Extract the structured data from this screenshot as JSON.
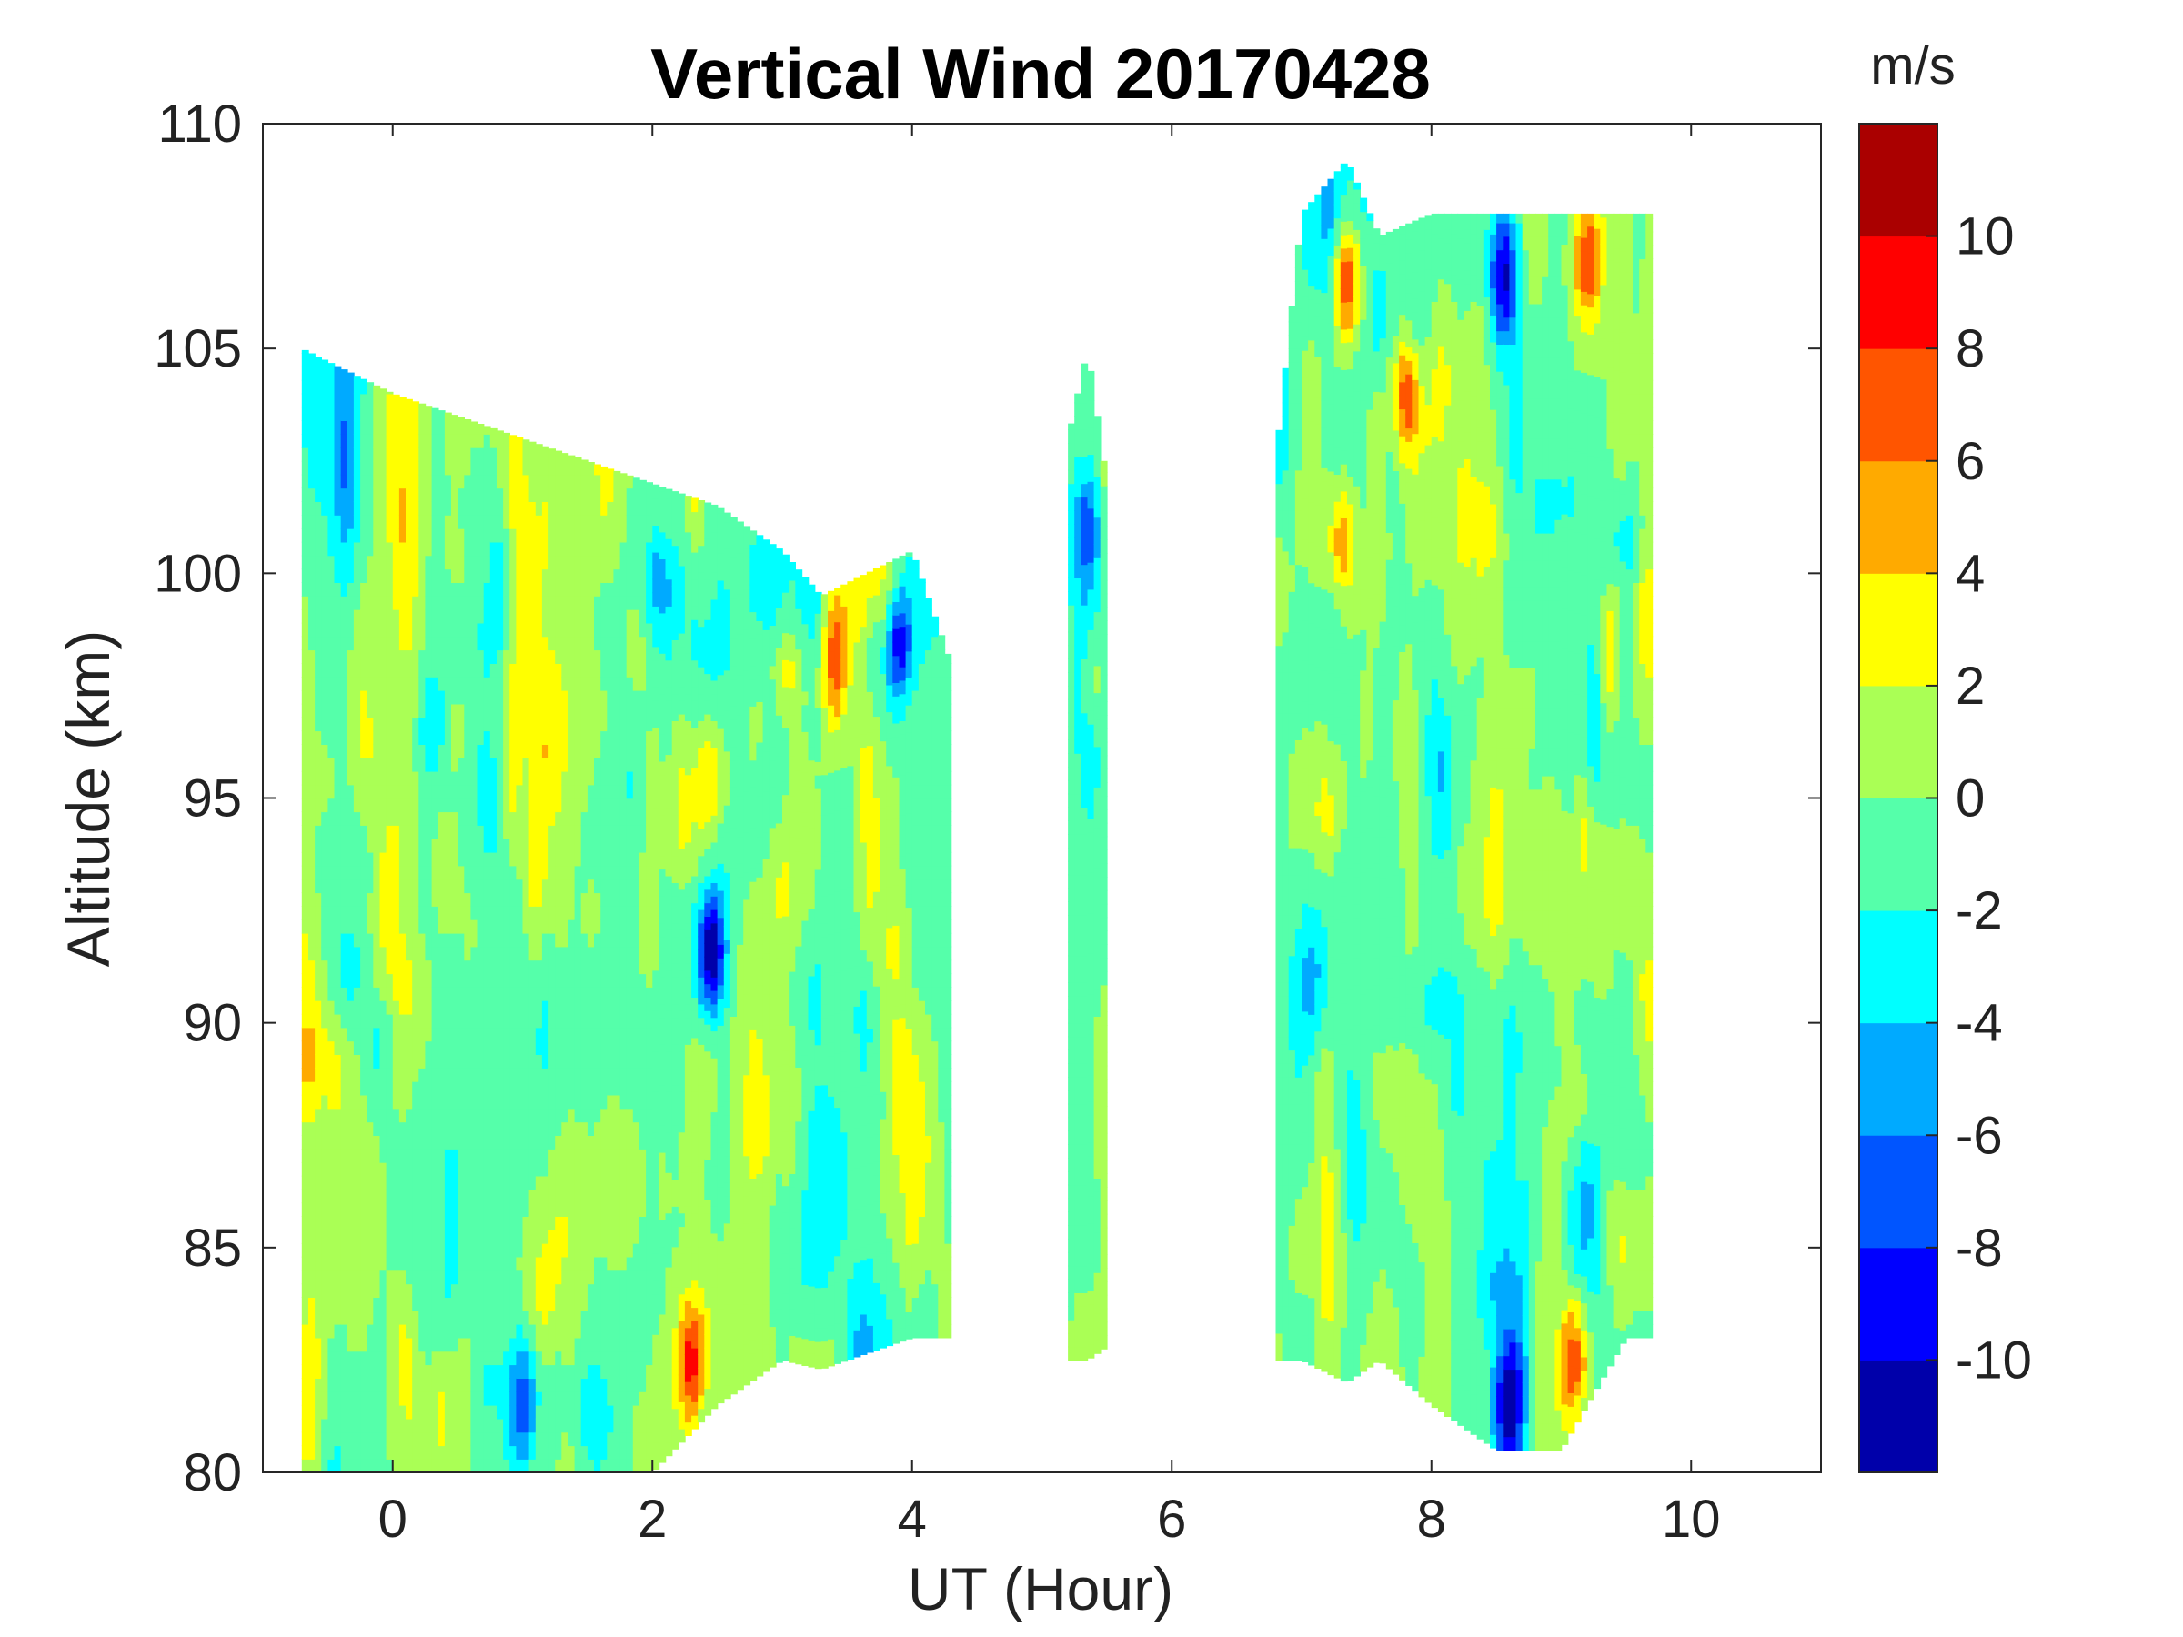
{
  "chart_data": {
    "type": "heatmap",
    "subtype": "filled-contour",
    "title": "Vertical Wind 20170428",
    "xlabel": "UT (Hour)",
    "ylabel": "Altitude (km)",
    "xlim": [
      -1,
      11
    ],
    "ylim": [
      80,
      110
    ],
    "xticks": [
      0,
      2,
      4,
      6,
      8,
      10
    ],
    "xtick_labels": [
      "0",
      "2",
      "4",
      "6",
      "8",
      "10"
    ],
    "yticks": [
      80,
      85,
      90,
      95,
      100,
      105,
      110
    ],
    "ytick_labels": [
      "80",
      "85",
      "90",
      "95",
      "100",
      "105",
      "110"
    ],
    "grid": false,
    "colorbar": {
      "label": "m/s",
      "range": [
        -12,
        12
      ],
      "levels": [
        -12,
        -10,
        -8,
        -6,
        -4,
        -2,
        0,
        2,
        4,
        6,
        8,
        10,
        12
      ],
      "ticks": [
        -10,
        -8,
        -6,
        -4,
        -2,
        0,
        2,
        4,
        6,
        8,
        10
      ],
      "tick_labels": [
        "-10",
        "-8",
        "-6",
        "-4",
        "-2",
        "0",
        "2",
        "4",
        "6",
        "8",
        "10"
      ],
      "colors": [
        "#0000aa",
        "#0000ff",
        "#0055ff",
        "#00aaff",
        "#00ffff",
        "#55ffaa",
        "#aaff55",
        "#ffff00",
        "#ffaa00",
        "#ff5500",
        "#ff0000",
        "#aa0000"
      ],
      "placement": "right"
    },
    "coverage": [
      {
        "x": [
          -0.7,
          0.0,
          0.5,
          1.0,
          1.5,
          2.0,
          2.5,
          3.0,
          3.3,
          4.0,
          4.3
        ],
        "top": [
          105.0,
          104.0,
          103.5,
          103.0,
          102.5,
          102.0,
          101.5,
          100.5,
          99.5,
          100.5,
          98.0
        ],
        "bottom": [
          80.0,
          80.0,
          80.0,
          80.0,
          80.0,
          80.0,
          81.5,
          82.5,
          82.3,
          83.0,
          83.0
        ]
      },
      {
        "x": [
          5.2,
          5.35,
          5.5
        ],
        "top": [
          103.0,
          105.0,
          102.0
        ],
        "bottom": [
          82.5,
          82.5,
          82.8
        ]
      },
      {
        "x": [
          6.8,
          7.0,
          7.35,
          7.6,
          8.0,
          8.5,
          9.0,
          9.5,
          9.7
        ],
        "top": [
          102.5,
          108.0,
          109.2,
          107.5,
          108.0,
          108.0,
          108.0,
          108.0,
          108.0
        ],
        "bottom": [
          82.5,
          82.5,
          82.0,
          82.5,
          81.5,
          80.5,
          80.5,
          83.0,
          83.0
        ]
      }
    ],
    "features": [
      {
        "x": 2.45,
        "y": 91.5,
        "value": -10
      },
      {
        "x": 2.45,
        "y": 95.5,
        "value": 5
      },
      {
        "x": 3.4,
        "y": 98.0,
        "value": 7
      },
      {
        "x": 3.9,
        "y": 98.5,
        "value": -9
      },
      {
        "x": 2.3,
        "y": 82.5,
        "value": 8
      },
      {
        "x": 7.35,
        "y": 106.5,
        "value": 9
      },
      {
        "x": 7.8,
        "y": 104.0,
        "value": 9
      },
      {
        "x": 7.3,
        "y": 100.8,
        "value": 7
      },
      {
        "x": 8.55,
        "y": 106.5,
        "value": -10
      },
      {
        "x": 9.2,
        "y": 107.0,
        "value": 8
      },
      {
        "x": 8.6,
        "y": 81.5,
        "value": -10
      },
      {
        "x": 9.1,
        "y": 82.5,
        "value": 8
      },
      {
        "x": 1.0,
        "y": 81.5,
        "value": -7
      },
      {
        "x": 0.3,
        "y": 85.0,
        "value": 3
      },
      {
        "x": 9.5,
        "y": 93.0,
        "value": 3
      },
      {
        "x": 7.2,
        "y": 94.5,
        "value": 3
      },
      {
        "x": 5.35,
        "y": 101.0,
        "value": -6
      }
    ]
  }
}
